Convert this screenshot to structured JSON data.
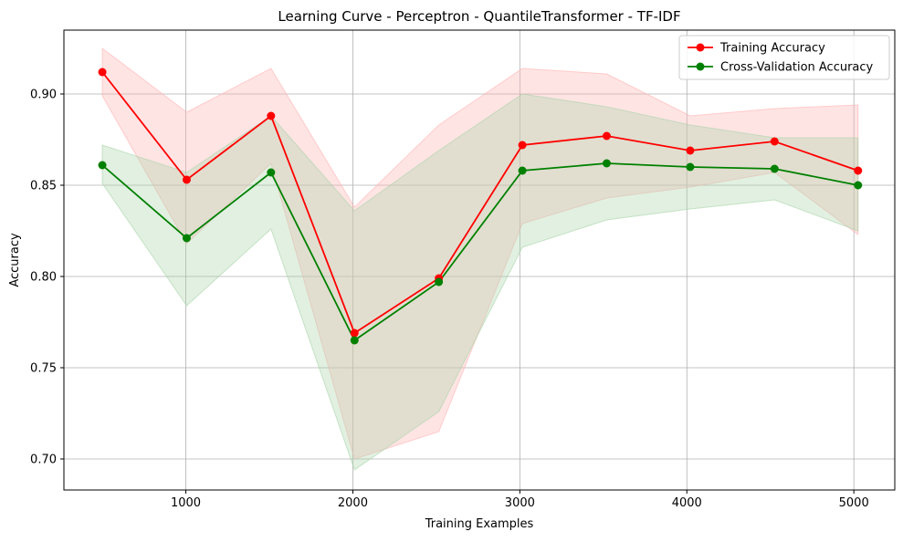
{
  "chart_data": {
    "type": "line",
    "title": "Learning Curve - Perceptron - QuantileTransformer - TF-IDF",
    "xlabel": "Training Examples",
    "ylabel": "Accuracy",
    "xlim": [
      270,
      5245
    ],
    "ylim": [
      0.683,
      0.935
    ],
    "xticks": [
      1000,
      2000,
      3000,
      4000,
      5000
    ],
    "xtick_labels": [
      "1000",
      "2000",
      "3000",
      "4000",
      "5000"
    ],
    "yticks": [
      0.7,
      0.75,
      0.8,
      0.85,
      0.9
    ],
    "ytick_labels": [
      "0.70",
      "0.75",
      "0.80",
      "0.85",
      "0.90"
    ],
    "grid": true,
    "legend_position": "top-right",
    "x": [
      500,
      1005,
      1510,
      2010,
      2515,
      3015,
      3520,
      4020,
      4525,
      5025
    ],
    "series": [
      {
        "name": "Training Accuracy",
        "color": "#ff0000",
        "band_color": "#ffb3b3",
        "marker": "circle",
        "values": [
          0.912,
          0.853,
          0.888,
          0.769,
          0.799,
          0.872,
          0.877,
          0.869,
          0.874,
          0.858
        ],
        "lower": [
          0.899,
          0.818,
          0.862,
          0.7,
          0.715,
          0.829,
          0.843,
          0.849,
          0.857,
          0.823
        ],
        "upper": [
          0.925,
          0.89,
          0.914,
          0.838,
          0.883,
          0.914,
          0.911,
          0.888,
          0.892,
          0.894
        ]
      },
      {
        "name": "Cross-Validation Accuracy",
        "color": "#008000",
        "band_color": "#a9d4a9",
        "marker": "circle",
        "values": [
          0.861,
          0.821,
          0.857,
          0.765,
          0.797,
          0.858,
          0.862,
          0.86,
          0.859,
          0.85
        ],
        "lower": [
          0.851,
          0.784,
          0.826,
          0.694,
          0.726,
          0.816,
          0.831,
          0.837,
          0.842,
          0.825
        ],
        "upper": [
          0.872,
          0.857,
          0.888,
          0.836,
          0.869,
          0.9,
          0.893,
          0.883,
          0.876,
          0.876
        ]
      }
    ]
  }
}
